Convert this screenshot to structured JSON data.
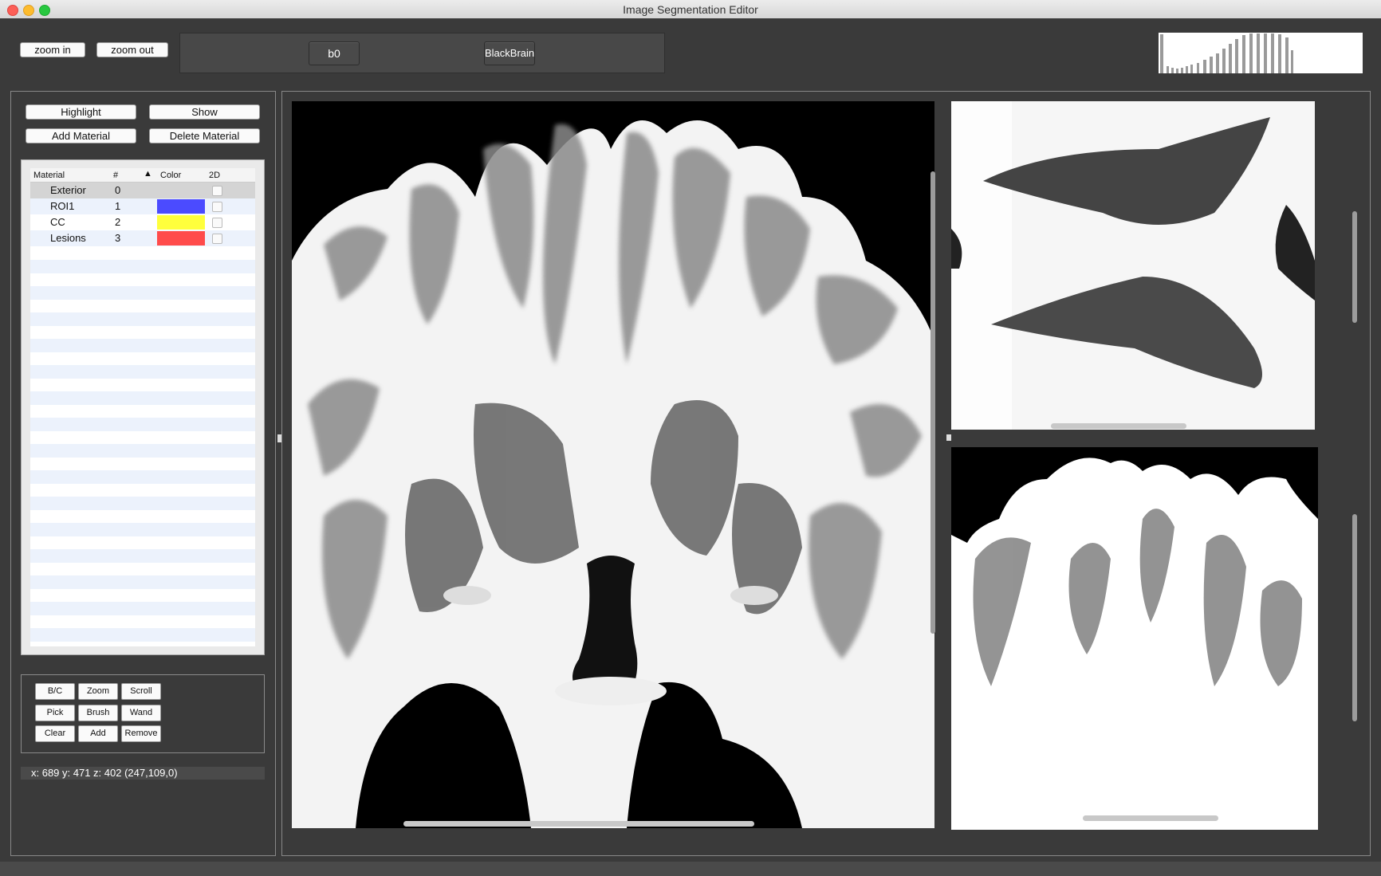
{
  "window": {
    "title": "Image Segmentation Editor"
  },
  "toolbar": {
    "zoom_in_label": "zoom in",
    "zoom_out_label": "zoom out",
    "channel_buttons": [
      "b0",
      "BlackBrain"
    ]
  },
  "material_panel": {
    "buttons": {
      "highlight": "Highlight",
      "show": "Show",
      "add_material": "Add Material",
      "delete_material": "Delete Material"
    },
    "columns": [
      "Material",
      "#",
      "Color",
      "2D"
    ],
    "rows": [
      {
        "material": "Exterior",
        "id": "0",
        "color": "",
        "checked_2d": false
      },
      {
        "material": "ROI1",
        "id": "1",
        "color": "#4b4bff",
        "checked_2d": false
      },
      {
        "material": "CC",
        "id": "2",
        "color": "#ffff3c",
        "checked_2d": false
      },
      {
        "material": "Lesions",
        "id": "3",
        "color": "#ff4b4b",
        "checked_2d": false
      }
    ]
  },
  "tools": {
    "buttons": [
      "B/C",
      "Zoom",
      "Scroll",
      "Pick",
      "Brush",
      "Wand",
      "Clear",
      "Add",
      "Remove"
    ]
  },
  "status": {
    "coordinates": "x: 689 y: 471 z: 402 (247,109,0)"
  },
  "colors": {
    "window_bg": "#3a3a3a",
    "accent_stripe": "#ecf2fc"
  }
}
